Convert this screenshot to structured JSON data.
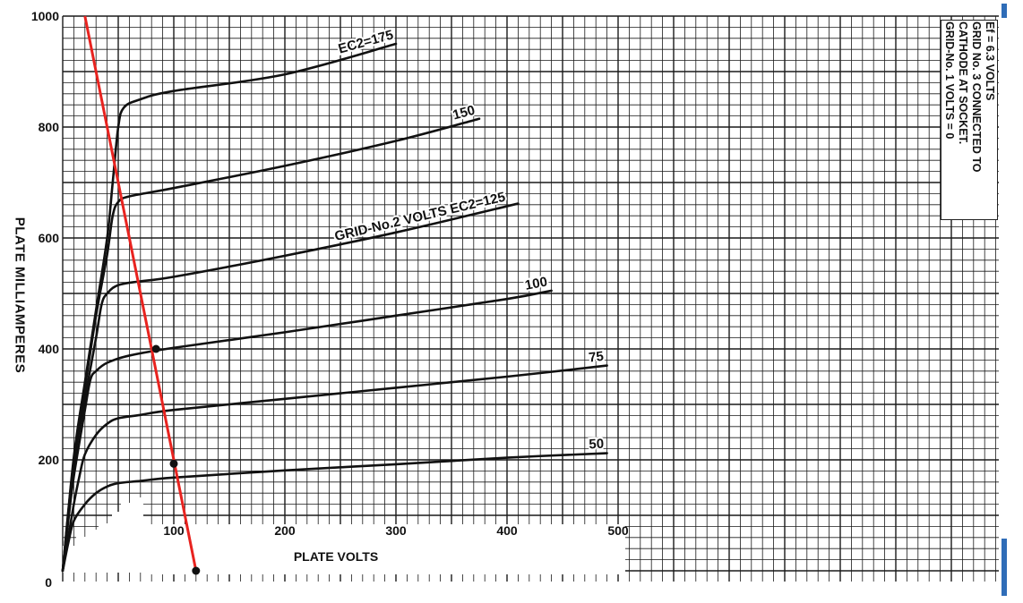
{
  "chart_data": {
    "type": "line",
    "xlabel": "PLATE VOLTS",
    "ylabel": "PLATE MILLIAMPERES",
    "xlim": [
      0,
      500
    ],
    "ylim": [
      0,
      1000
    ],
    "grid": true,
    "x_ticks": [
      "100",
      "200",
      "300",
      "400",
      "500"
    ],
    "y_ticks": [
      "0",
      "200",
      "400",
      "600",
      "800",
      "1000"
    ],
    "series": [
      {
        "name": "50",
        "label": "50",
        "points": [
          [
            0,
            0
          ],
          [
            5,
            50
          ],
          [
            10,
            90
          ],
          [
            20,
            120
          ],
          [
            30,
            140
          ],
          [
            40,
            152
          ],
          [
            50,
            158
          ],
          [
            70,
            162
          ],
          [
            100,
            168
          ],
          [
            200,
            181
          ],
          [
            300,
            192
          ],
          [
            400,
            204
          ],
          [
            490,
            212
          ]
        ]
      },
      {
        "name": "75",
        "label": "75",
        "points": [
          [
            0,
            0
          ],
          [
            5,
            60
          ],
          [
            10,
            120
          ],
          [
            15,
            170
          ],
          [
            20,
            210
          ],
          [
            30,
            245
          ],
          [
            40,
            265
          ],
          [
            50,
            275
          ],
          [
            70,
            281
          ],
          [
            100,
            290
          ],
          [
            200,
            310
          ],
          [
            300,
            330
          ],
          [
            400,
            350
          ],
          [
            490,
            370
          ]
        ]
      },
      {
        "name": "100",
        "label": "100",
        "points": [
          [
            0,
            0
          ],
          [
            5,
            90
          ],
          [
            10,
            170
          ],
          [
            20,
            290
          ],
          [
            25,
            345
          ],
          [
            30,
            360
          ],
          [
            40,
            375
          ],
          [
            60,
            388
          ],
          [
            100,
            402
          ],
          [
            200,
            430
          ],
          [
            300,
            460
          ],
          [
            400,
            490
          ],
          [
            440,
            505
          ]
        ]
      },
      {
        "name": "125",
        "label": "GRID-No.2 VOLTS EC2=125",
        "points": [
          [
            0,
            0
          ],
          [
            10,
            190
          ],
          [
            20,
            310
          ],
          [
            30,
            420
          ],
          [
            35,
            480
          ],
          [
            40,
            500
          ],
          [
            50,
            515
          ],
          [
            70,
            522
          ],
          [
            100,
            530
          ],
          [
            200,
            568
          ],
          [
            300,
            610
          ],
          [
            410,
            662
          ]
        ]
      },
      {
        "name": "150",
        "label": "150",
        "points": [
          [
            0,
            0
          ],
          [
            10,
            200
          ],
          [
            20,
            330
          ],
          [
            30,
            460
          ],
          [
            40,
            570
          ],
          [
            45,
            640
          ],
          [
            50,
            665
          ],
          [
            60,
            675
          ],
          [
            100,
            690
          ],
          [
            200,
            730
          ],
          [
            300,
            775
          ],
          [
            375,
            815
          ]
        ]
      },
      {
        "name": "175",
        "label": "EC2=175",
        "points": [
          [
            0,
            0
          ],
          [
            10,
            205
          ],
          [
            20,
            340
          ],
          [
            30,
            470
          ],
          [
            40,
            600
          ],
          [
            45,
            700
          ],
          [
            50,
            800
          ],
          [
            55,
            835
          ],
          [
            70,
            850
          ],
          [
            100,
            865
          ],
          [
            200,
            895
          ],
          [
            300,
            950
          ]
        ]
      }
    ],
    "load_line": {
      "color": "#e8231f",
      "points": [
        [
          20,
          1000
        ],
        [
          120,
          0
        ]
      ]
    },
    "markers": [
      [
        84,
        400
      ],
      [
        100,
        193
      ],
      [
        120,
        0
      ]
    ],
    "notes": [
      "Ef = 6.3 VOLTS",
      "GRID No. 3 CONNECTED TO",
      "CATHODE AT SOCKET.",
      "GRID-No. 1 VOLTS = 0"
    ]
  }
}
